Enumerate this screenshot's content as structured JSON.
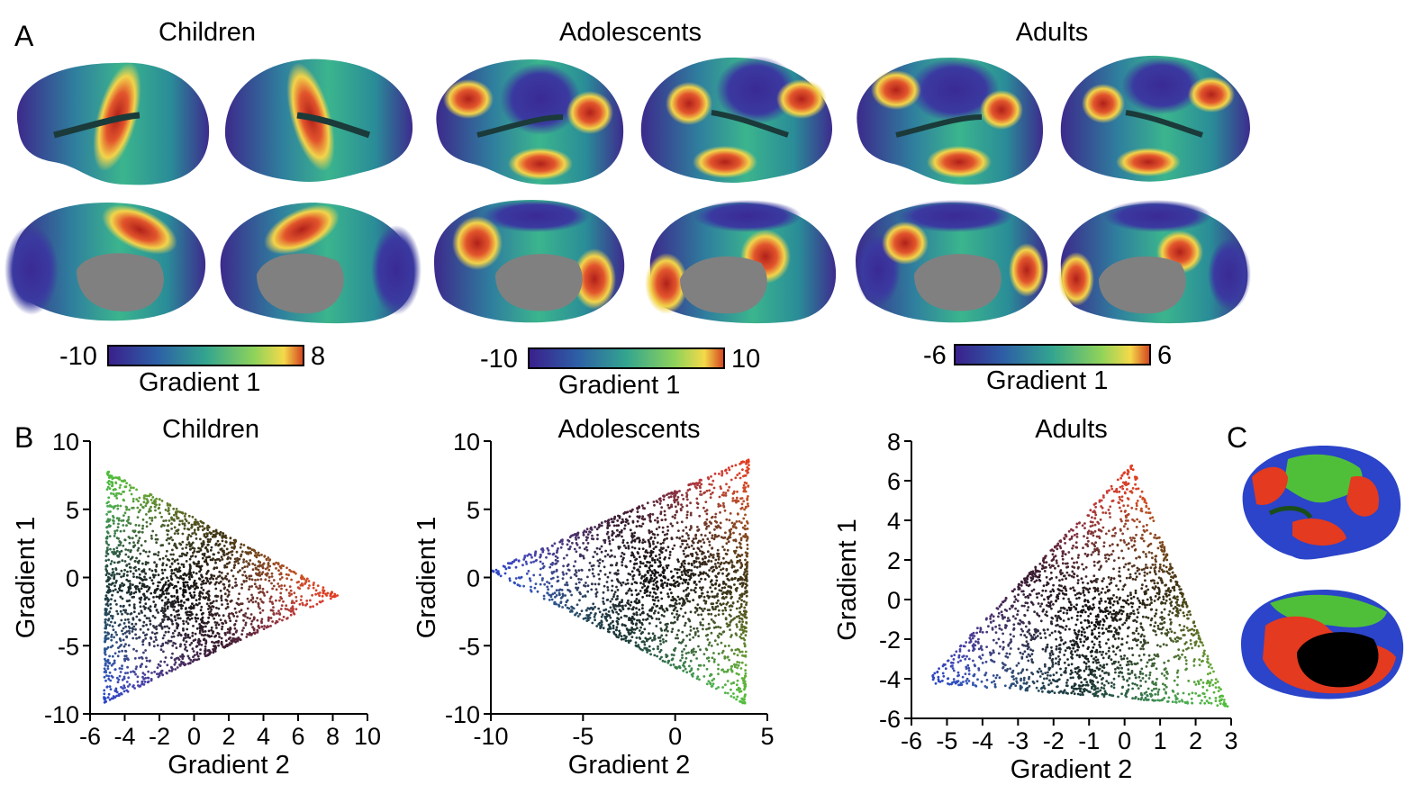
{
  "panels": {
    "A": "A",
    "B": "B",
    "C": "C"
  },
  "groups": [
    {
      "title": "Children"
    },
    {
      "title": "Adolescents"
    },
    {
      "title": "Adults"
    }
  ],
  "colorbars": [
    {
      "min": "-10",
      "max": "8",
      "label": "Gradient 1"
    },
    {
      "min": "-10",
      "max": "10",
      "label": "Gradient 1"
    },
    {
      "min": "-6",
      "max": "6",
      "label": "Gradient 1"
    }
  ],
  "colors": {
    "blue": "#2b44c9",
    "green": "#4fbf3a",
    "red": "#e43a1f",
    "black": "#000000",
    "medial_wall": "#808080"
  },
  "chart_data": [
    {
      "type": "scatter",
      "title": "Children",
      "xlabel": "Gradient 2",
      "ylabel": "Gradient 1",
      "xlim": [
        -6,
        10
      ],
      "ylim": [
        -10,
        10
      ],
      "xticks": [
        "-6",
        "-4",
        "-2",
        "0",
        "2",
        "4",
        "6",
        "8",
        "10"
      ],
      "yticks": [
        "-10",
        "-5",
        "0",
        "5",
        "10"
      ],
      "vertices": {
        "blue": [
          -5.2,
          -9.2
        ],
        "green": [
          -5.0,
          7.8
        ],
        "red": [
          8.3,
          -1.3
        ]
      }
    },
    {
      "type": "scatter",
      "title": "Adolescents",
      "xlabel": "Gradient 2",
      "ylabel": "Gradient 1",
      "xlim": [
        -10,
        5
      ],
      "ylim": [
        -10,
        10
      ],
      "xticks": [
        "-10",
        "-5",
        "0",
        "5"
      ],
      "yticks": [
        "-10",
        "-5",
        "0",
        "5",
        "10"
      ],
      "vertices": {
        "blue": [
          -10,
          0.5
        ],
        "green": [
          3.8,
          -9.3
        ],
        "red": [
          4.0,
          8.7
        ]
      }
    },
    {
      "type": "scatter",
      "title": "Adults",
      "xlabel": "Gradient 2",
      "ylabel": "Gradient 1",
      "xlim": [
        -6,
        3
      ],
      "ylim": [
        -6,
        8
      ],
      "xticks": [
        "-6",
        "-5",
        "-4",
        "-3",
        "-2",
        "-1",
        "0",
        "1",
        "2",
        "3"
      ],
      "yticks": [
        "-6",
        "-4",
        "-2",
        "0",
        "2",
        "4",
        "6",
        "8"
      ],
      "vertices": {
        "blue": [
          -5.6,
          -4.2
        ],
        "green": [
          2.9,
          -5.4
        ],
        "red": [
          0.2,
          6.8
        ]
      }
    }
  ]
}
